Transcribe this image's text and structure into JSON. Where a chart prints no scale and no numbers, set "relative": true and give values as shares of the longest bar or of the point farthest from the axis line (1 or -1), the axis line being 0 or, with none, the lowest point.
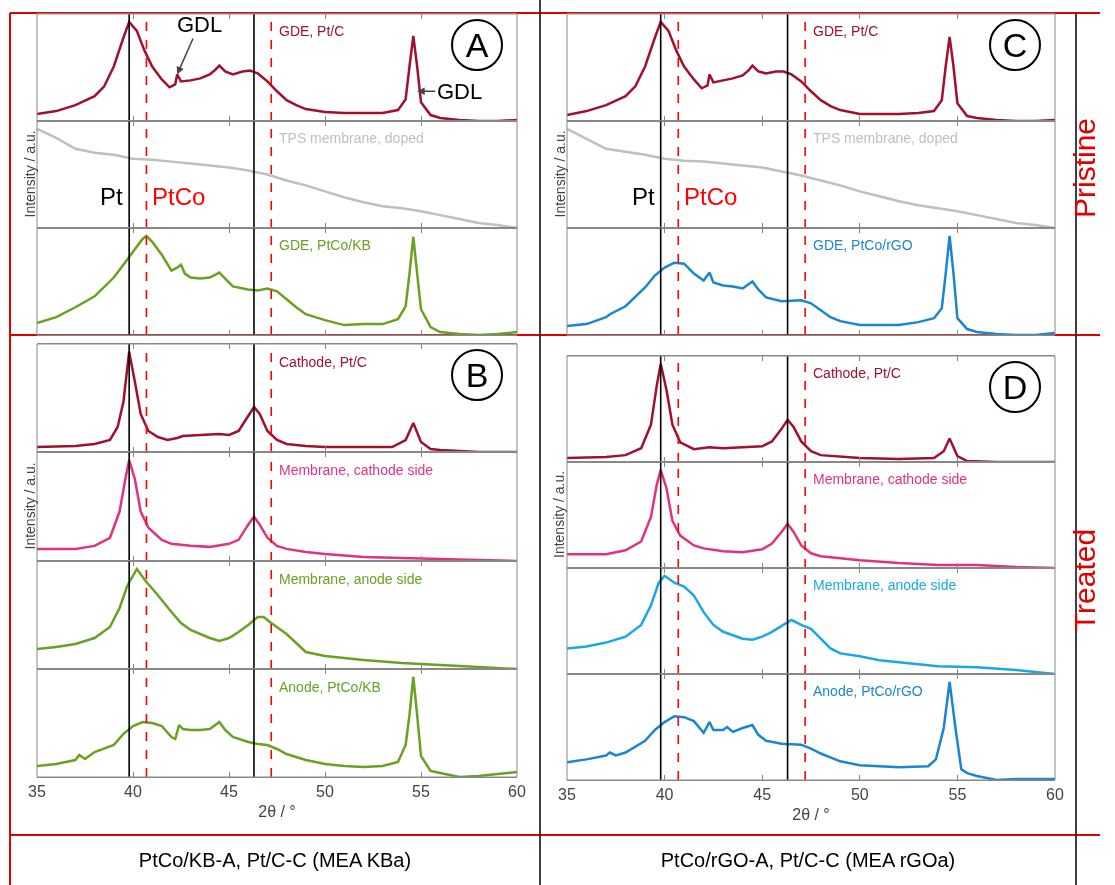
{
  "chart_data": [
    {
      "type": "line",
      "relative": true,
      "xlim": [
        35,
        60
      ],
      "xticks": [
        35,
        40,
        45,
        50,
        55,
        60
      ],
      "tick_labels": false,
      "annotations": [
        "A",
        {
          "text": "GDL",
          "x": 42.3,
          "y": 0.47
        },
        {
          "text": "GDL",
          "x": 54.8,
          "y": 0.3
        }
      ],
      "ref_lines": [
        {
          "axis": "x",
          "value": 39.8,
          "color": "#000000",
          "line_style": "solid"
        },
        {
          "axis": "x",
          "value": 40.7,
          "color": "#ff0000",
          "line_style": "dashed"
        },
        {
          "axis": "x",
          "value": 46.3,
          "color": "#000000",
          "line_style": "solid"
        },
        {
          "axis": "x",
          "value": 47.2,
          "color": "#ff0000",
          "line_style": "dashed"
        }
      ],
      "series": [
        {
          "name": "GDE, Pt/C",
          "color": "#a0112e",
          "x": [
            35,
            36,
            37,
            38,
            38.5,
            39,
            39.5,
            39.8,
            40.2,
            40.6,
            41,
            41.5,
            41.9,
            42.2,
            42.3,
            42.5,
            43,
            43.5,
            44,
            44.3,
            44.5,
            44.8,
            45.2,
            45.7,
            46.1,
            46.5,
            47,
            47.5,
            48,
            48.5,
            49,
            50,
            51,
            52,
            53,
            53.8,
            54.2,
            54.4,
            54.6,
            54.8,
            55,
            55.5,
            56,
            57,
            58,
            59,
            60
          ],
          "values": [
            0.07,
            0.1,
            0.16,
            0.25,
            0.35,
            0.55,
            0.84,
            1.0,
            0.91,
            0.71,
            0.55,
            0.42,
            0.34,
            0.37,
            0.47,
            0.4,
            0.41,
            0.43,
            0.47,
            0.52,
            0.56,
            0.5,
            0.47,
            0.5,
            0.51,
            0.48,
            0.4,
            0.3,
            0.21,
            0.16,
            0.12,
            0.09,
            0.08,
            0.08,
            0.08,
            0.11,
            0.22,
            0.55,
            0.86,
            0.55,
            0.19,
            0.06,
            0.03,
            0.01,
            0,
            0,
            0.01
          ]
        }
      ]
    },
    {
      "type": "line",
      "relative": true,
      "xlim": [
        35,
        60
      ],
      "xticks": [
        35,
        40,
        45,
        50,
        55,
        60
      ],
      "tick_labels": false,
      "ylabel": "Intensity / a.u.",
      "ref_lines": [
        {
          "axis": "x",
          "value": 39.8,
          "label": "Pt",
          "color": "#000000",
          "line_style": "solid"
        },
        {
          "axis": "x",
          "value": 40.7,
          "label": "PtCo",
          "color": "#ff0000",
          "line_style": "dashed"
        },
        {
          "axis": "x",
          "value": 46.3,
          "color": "#000000",
          "line_style": "solid"
        },
        {
          "axis": "x",
          "value": 47.2,
          "color": "#ff0000",
          "line_style": "dashed"
        }
      ],
      "series": [
        {
          "name": "TPS membrane, doped",
          "color": "#bfbfbf",
          "x": [
            35,
            36,
            37,
            38,
            39,
            40,
            41,
            42,
            43,
            44,
            45,
            46,
            47,
            48,
            49,
            50,
            51,
            52,
            53,
            54,
            55,
            56,
            57,
            58,
            59,
            60
          ],
          "values": [
            1.0,
            0.91,
            0.8,
            0.76,
            0.74,
            0.7,
            0.69,
            0.67,
            0.65,
            0.63,
            0.61,
            0.58,
            0.54,
            0.48,
            0.43,
            0.37,
            0.31,
            0.26,
            0.22,
            0.2,
            0.17,
            0.13,
            0.09,
            0.05,
            0.03,
            0.0
          ]
        }
      ]
    },
    {
      "type": "line",
      "relative": true,
      "xlim": [
        35,
        60
      ],
      "xticks": [
        35,
        40,
        45,
        50,
        55,
        60
      ],
      "tick_labels": false,
      "ref_lines": [
        {
          "axis": "x",
          "value": 39.8,
          "color": "#000000",
          "line_style": "solid"
        },
        {
          "axis": "x",
          "value": 40.7,
          "color": "#ff0000",
          "line_style": "dashed"
        },
        {
          "axis": "x",
          "value": 46.3,
          "color": "#000000",
          "line_style": "solid"
        },
        {
          "axis": "x",
          "value": 47.2,
          "color": "#ff0000",
          "line_style": "dashed"
        }
      ],
      "series": [
        {
          "name": "GDE, PtCo/KB",
          "color": "#6aa121",
          "x": [
            35,
            36,
            37,
            38,
            39,
            39.5,
            40,
            40.5,
            40.7,
            41,
            41.5,
            42,
            42.3,
            42.5,
            42.7,
            43,
            43.5,
            44,
            44.5,
            44.8,
            45.2,
            46,
            46.5,
            47,
            47.5,
            48,
            48.5,
            49,
            50,
            51,
            52,
            53,
            53.8,
            54.2,
            54.4,
            54.6,
            54.8,
            55,
            55.5,
            56,
            57,
            58,
            59,
            60
          ],
          "values": [
            0.12,
            0.18,
            0.28,
            0.39,
            0.58,
            0.71,
            0.84,
            0.97,
            1.0,
            0.94,
            0.81,
            0.65,
            0.68,
            0.71,
            0.62,
            0.58,
            0.57,
            0.58,
            0.63,
            0.57,
            0.49,
            0.46,
            0.45,
            0.47,
            0.44,
            0.36,
            0.28,
            0.21,
            0.15,
            0.1,
            0.11,
            0.11,
            0.16,
            0.29,
            0.62,
            0.99,
            0.62,
            0.26,
            0.08,
            0.03,
            0.01,
            0,
            0.01,
            0.03
          ]
        }
      ]
    },
    {
      "type": "line",
      "relative": true,
      "xlim": [
        35,
        60
      ],
      "xticks": [
        35,
        40,
        45,
        50,
        55,
        60
      ],
      "tick_labels": false,
      "annotations": [
        "C"
      ],
      "ref_lines": [
        {
          "axis": "x",
          "value": 39.8,
          "color": "#000000",
          "line_style": "solid"
        },
        {
          "axis": "x",
          "value": 40.7,
          "color": "#ff0000",
          "line_style": "dashed"
        },
        {
          "axis": "x",
          "value": 46.3,
          "color": "#000000",
          "line_style": "solid"
        },
        {
          "axis": "x",
          "value": 47.2,
          "color": "#ff0000",
          "line_style": "dashed"
        }
      ],
      "series": [
        {
          "name": "GDE, Pt/C",
          "color": "#a0112e",
          "x": [
            35,
            36,
            37,
            38,
            38.5,
            39,
            39.5,
            39.8,
            40.2,
            40.6,
            41,
            41.5,
            41.9,
            42.2,
            42.3,
            42.5,
            43,
            43.5,
            44,
            44.3,
            44.5,
            44.8,
            45.2,
            45.7,
            46.1,
            46.5,
            47,
            47.5,
            48,
            48.5,
            49,
            50,
            51,
            52,
            53,
            53.8,
            54.2,
            54.4,
            54.6,
            54.8,
            55,
            55.5,
            56,
            57,
            58,
            59,
            60
          ],
          "values": [
            0.06,
            0.1,
            0.16,
            0.25,
            0.35,
            0.55,
            0.84,
            1.0,
            0.91,
            0.71,
            0.55,
            0.42,
            0.33,
            0.36,
            0.47,
            0.39,
            0.41,
            0.43,
            0.46,
            0.51,
            0.56,
            0.5,
            0.48,
            0.5,
            0.5,
            0.47,
            0.4,
            0.3,
            0.21,
            0.15,
            0.11,
            0.07,
            0.07,
            0.07,
            0.08,
            0.1,
            0.21,
            0.55,
            0.85,
            0.55,
            0.18,
            0.05,
            0.03,
            0.01,
            0,
            0,
            0.01
          ]
        }
      ]
    },
    {
      "type": "line",
      "relative": true,
      "xlim": [
        35,
        60
      ],
      "xticks": [
        35,
        40,
        45,
        50,
        55,
        60
      ],
      "tick_labels": false,
      "ylabel": "Intensity / a.u.",
      "ref_lines": [
        {
          "axis": "x",
          "value": 39.8,
          "label": "Pt",
          "color": "#000000",
          "line_style": "solid"
        },
        {
          "axis": "x",
          "value": 40.7,
          "label": "PtCo",
          "color": "#ff0000",
          "line_style": "dashed"
        },
        {
          "axis": "x",
          "value": 46.3,
          "color": "#000000",
          "line_style": "solid"
        },
        {
          "axis": "x",
          "value": 47.2,
          "color": "#ff0000",
          "line_style": "dashed"
        }
      ],
      "series": [
        {
          "name": "TPS membrane, doped",
          "color": "#bfbfbf",
          "x": [
            35,
            36,
            37,
            38,
            39,
            40,
            41,
            42,
            43,
            44,
            45,
            46,
            47,
            48,
            49,
            50,
            51,
            52,
            53,
            54,
            55,
            56,
            57,
            58,
            59,
            60
          ],
          "values": [
            1.0,
            0.9,
            0.8,
            0.77,
            0.74,
            0.7,
            0.68,
            0.67,
            0.65,
            0.63,
            0.61,
            0.57,
            0.53,
            0.48,
            0.43,
            0.37,
            0.32,
            0.27,
            0.23,
            0.2,
            0.17,
            0.13,
            0.09,
            0.05,
            0.03,
            0.0
          ]
        }
      ]
    },
    {
      "type": "line",
      "relative": true,
      "xlim": [
        35,
        60
      ],
      "xticks": [
        35,
        40,
        45,
        50,
        55,
        60
      ],
      "tick_labels": false,
      "ref_lines": [
        {
          "axis": "x",
          "value": 39.8,
          "color": "#000000",
          "line_style": "solid"
        },
        {
          "axis": "x",
          "value": 40.7,
          "color": "#ff0000",
          "line_style": "dashed"
        },
        {
          "axis": "x",
          "value": 46.3,
          "color": "#000000",
          "line_style": "solid"
        },
        {
          "axis": "x",
          "value": 47.2,
          "color": "#ff0000",
          "line_style": "dashed"
        }
      ],
      "series": [
        {
          "name": "GDE, PtCo/rGO",
          "color": "#1a86cf",
          "x": [
            35,
            36,
            37,
            37.2,
            38,
            39,
            39.5,
            40,
            40.5,
            41,
            41.5,
            42,
            42.3,
            42.5,
            43,
            43.5,
            44,
            44.5,
            44.8,
            45.2,
            46,
            47,
            47.5,
            48,
            48.5,
            49,
            50,
            51,
            52,
            53,
            53.8,
            54.2,
            54.4,
            54.6,
            54.8,
            55,
            55.5,
            56,
            57,
            58,
            59,
            60
          ],
          "values": [
            0.09,
            0.11,
            0.18,
            0.21,
            0.29,
            0.48,
            0.6,
            0.68,
            0.73,
            0.72,
            0.62,
            0.55,
            0.63,
            0.53,
            0.5,
            0.49,
            0.47,
            0.54,
            0.46,
            0.38,
            0.34,
            0.35,
            0.32,
            0.25,
            0.18,
            0.14,
            0.1,
            0.1,
            0.1,
            0.13,
            0.17,
            0.27,
            0.62,
            1.0,
            0.62,
            0.17,
            0.06,
            0.03,
            0.01,
            0,
            0,
            0.02
          ]
        }
      ]
    },
    {
      "type": "line",
      "relative": true,
      "xlim": [
        35,
        60
      ],
      "xticks": [
        35,
        40,
        45,
        50,
        55,
        60
      ],
      "tick_labels": false,
      "annotations": [
        "B"
      ],
      "ref_lines": [
        {
          "axis": "x",
          "value": 39.8,
          "color": "#000000",
          "line_style": "solid"
        },
        {
          "axis": "x",
          "value": 40.7,
          "color": "#ff0000",
          "line_style": "dashed"
        },
        {
          "axis": "x",
          "value": 46.3,
          "color": "#000000",
          "line_style": "solid"
        },
        {
          "axis": "x",
          "value": 47.2,
          "color": "#ff0000",
          "line_style": "dashed"
        }
      ],
      "series": [
        {
          "name": "Cathode, Pt/C",
          "color": "#a0112e",
          "x": [
            35,
            37,
            38,
            38.8,
            39.2,
            39.5,
            39.8,
            40.1,
            40.4,
            40.8,
            41.3,
            41.8,
            42.3,
            42.6,
            43.5,
            44.5,
            45,
            45.5,
            46,
            46.3,
            46.6,
            47,
            47.5,
            48,
            49,
            50,
            52,
            53.5,
            54.2,
            54.6,
            55,
            55.5,
            56,
            58,
            60
          ],
          "values": [
            0.05,
            0.06,
            0.08,
            0.12,
            0.25,
            0.5,
            1.0,
            0.7,
            0.38,
            0.21,
            0.15,
            0.12,
            0.14,
            0.16,
            0.17,
            0.18,
            0.17,
            0.21,
            0.36,
            0.45,
            0.38,
            0.21,
            0.12,
            0.08,
            0.06,
            0.05,
            0.05,
            0.05,
            0.12,
            0.29,
            0.1,
            0.03,
            0.02,
            0,
            0
          ]
        }
      ]
    },
    {
      "type": "line",
      "relative": true,
      "xlim": [
        35,
        60
      ],
      "xticks": [
        35,
        40,
        45,
        50,
        55,
        60
      ],
      "tick_labels": false,
      "ylabel": "Intensity / a.u.",
      "ref_lines": [
        {
          "axis": "x",
          "value": 39.8,
          "color": "#000000",
          "line_style": "solid"
        },
        {
          "axis": "x",
          "value": 40.7,
          "color": "#ff0000",
          "line_style": "dashed"
        },
        {
          "axis": "x",
          "value": 46.3,
          "color": "#000000",
          "line_style": "solid"
        },
        {
          "axis": "x",
          "value": 47.2,
          "color": "#ff0000",
          "line_style": "dashed"
        }
      ],
      "series": [
        {
          "name": "Membrane, cathode side",
          "color": "#e0337f",
          "x": [
            35,
            37,
            38,
            38.8,
            39.3,
            39.6,
            39.8,
            40.1,
            40.4,
            40.8,
            41.5,
            42,
            43,
            44,
            45,
            45.5,
            46,
            46.3,
            46.6,
            47,
            47.5,
            48,
            49,
            50,
            52,
            54,
            56,
            58,
            60
          ],
          "values": [
            0.12,
            0.12,
            0.15,
            0.23,
            0.49,
            0.81,
            1.0,
            0.81,
            0.49,
            0.33,
            0.21,
            0.17,
            0.15,
            0.14,
            0.17,
            0.21,
            0.36,
            0.44,
            0.36,
            0.23,
            0.15,
            0.12,
            0.09,
            0.07,
            0.04,
            0.03,
            0.02,
            0.01,
            0
          ]
        }
      ]
    },
    {
      "type": "line",
      "relative": true,
      "xlim": [
        35,
        60
      ],
      "xticks": [
        35,
        40,
        45,
        50,
        55,
        60
      ],
      "tick_labels": false,
      "ref_lines": [
        {
          "axis": "x",
          "value": 39.8,
          "color": "#000000",
          "line_style": "solid"
        },
        {
          "axis": "x",
          "value": 40.7,
          "color": "#ff0000",
          "line_style": "dashed"
        },
        {
          "axis": "x",
          "value": 46.3,
          "color": "#000000",
          "line_style": "solid"
        },
        {
          "axis": "x",
          "value": 47.2,
          "color": "#ff0000",
          "line_style": "dashed"
        }
      ],
      "series": [
        {
          "name": "Membrane, anode side",
          "color": "#6aa121",
          "x": [
            35,
            36,
            37,
            38,
            38.8,
            39.3,
            39.7,
            40.2,
            40.7,
            41.2,
            42,
            42.5,
            43,
            44,
            44.5,
            45,
            45.5,
            46,
            46.5,
            46.8,
            47.2,
            48,
            48.5,
            49,
            50,
            51,
            52,
            54,
            56,
            58,
            60
          ],
          "values": [
            0.2,
            0.22,
            0.25,
            0.31,
            0.42,
            0.61,
            0.83,
            1.0,
            0.87,
            0.76,
            0.57,
            0.46,
            0.39,
            0.31,
            0.28,
            0.31,
            0.37,
            0.44,
            0.52,
            0.52,
            0.46,
            0.35,
            0.26,
            0.17,
            0.13,
            0.11,
            0.09,
            0.06,
            0.04,
            0.02,
            0
          ]
        }
      ]
    },
    {
      "type": "line",
      "relative": true,
      "xlim": [
        35,
        60
      ],
      "xticks": [
        35,
        40,
        45,
        50,
        55,
        60
      ],
      "tick_labels": "x",
      "xlabel": "2θ / °",
      "ref_lines": [
        {
          "axis": "x",
          "value": 39.8,
          "color": "#000000",
          "line_style": "solid"
        },
        {
          "axis": "x",
          "value": 40.7,
          "color": "#ff0000",
          "line_style": "dashed"
        },
        {
          "axis": "x",
          "value": 46.3,
          "color": "#000000",
          "line_style": "solid"
        },
        {
          "axis": "x",
          "value": 47.2,
          "color": "#ff0000",
          "line_style": "dashed"
        }
      ],
      "series": [
        {
          "name": "Anode, PtCo/KB",
          "color": "#6aa121",
          "x": [
            35,
            36,
            37,
            37.2,
            37.5,
            38,
            39,
            39.5,
            40,
            40.5,
            41,
            41.5,
            42,
            42.2,
            42.4,
            42.6,
            43,
            43.5,
            44,
            44.5,
            44.8,
            45.2,
            46,
            46.5,
            47,
            47.5,
            48,
            49,
            50,
            51,
            52,
            53,
            53.8,
            54.2,
            54.4,
            54.6,
            54.8,
            55,
            55.5,
            56,
            57,
            58,
            59,
            60
          ],
          "values": [
            0.11,
            0.13,
            0.17,
            0.22,
            0.18,
            0.25,
            0.32,
            0.43,
            0.51,
            0.55,
            0.54,
            0.51,
            0.4,
            0.38,
            0.52,
            0.48,
            0.47,
            0.47,
            0.48,
            0.55,
            0.47,
            0.4,
            0.35,
            0.33,
            0.32,
            0.28,
            0.23,
            0.17,
            0.13,
            0.11,
            0.1,
            0.11,
            0.15,
            0.32,
            0.62,
            1.0,
            0.62,
            0.21,
            0.06,
            0.04,
            0,
            0.01,
            0.03,
            0.05
          ]
        }
      ]
    },
    {
      "type": "line",
      "relative": true,
      "xlim": [
        35,
        60
      ],
      "xticks": [
        35,
        40,
        45,
        50,
        55,
        60
      ],
      "tick_labels": false,
      "annotations": [
        "D"
      ],
      "ref_lines": [
        {
          "axis": "x",
          "value": 39.8,
          "color": "#000000",
          "line_style": "solid"
        },
        {
          "axis": "x",
          "value": 40.7,
          "color": "#ff0000",
          "line_style": "dashed"
        },
        {
          "axis": "x",
          "value": 46.3,
          "color": "#000000",
          "line_style": "solid"
        },
        {
          "axis": "x",
          "value": 47.2,
          "color": "#ff0000",
          "line_style": "dashed"
        }
      ],
      "series": [
        {
          "name": "Cathode, Pt/C",
          "color": "#a0112e",
          "x": [
            35,
            37,
            38,
            38.8,
            39.3,
            39.6,
            39.8,
            40.1,
            40.4,
            40.8,
            41.5,
            42.3,
            43,
            44,
            45,
            45.5,
            46,
            46.3,
            46.6,
            47,
            47.5,
            48,
            50,
            52,
            53.8,
            54.3,
            54.6,
            55,
            55.5,
            57,
            60
          ],
          "values": [
            0.04,
            0.05,
            0.07,
            0.14,
            0.38,
            0.78,
            1.0,
            0.73,
            0.38,
            0.2,
            0.13,
            0.15,
            0.14,
            0.15,
            0.16,
            0.21,
            0.34,
            0.43,
            0.36,
            0.21,
            0.11,
            0.07,
            0.04,
            0.03,
            0.04,
            0.11,
            0.24,
            0.06,
            0.01,
            0,
            0
          ]
        }
      ]
    },
    {
      "type": "line",
      "relative": true,
      "xlim": [
        35,
        60
      ],
      "xticks": [
        35,
        40,
        45,
        50,
        55,
        60
      ],
      "tick_labels": false,
      "ylabel": "Intensity / a.u.",
      "ref_lines": [
        {
          "axis": "x",
          "value": 39.8,
          "color": "#000000",
          "line_style": "solid"
        },
        {
          "axis": "x",
          "value": 40.7,
          "color": "#ff0000",
          "line_style": "dashed"
        },
        {
          "axis": "x",
          "value": 46.3,
          "color": "#000000",
          "line_style": "solid"
        },
        {
          "axis": "x",
          "value": 47.2,
          "color": "#ff0000",
          "line_style": "dashed"
        }
      ],
      "series": [
        {
          "name": "Membrane, cathode side",
          "color": "#e0337f",
          "x": [
            35,
            37,
            38,
            38.8,
            39.3,
            39.6,
            39.8,
            40.1,
            40.4,
            40.8,
            41.5,
            42,
            43,
            44,
            45,
            45.5,
            46,
            46.3,
            46.6,
            47,
            47.5,
            48,
            50,
            52,
            54,
            56,
            58,
            60
          ],
          "values": [
            0.14,
            0.14,
            0.18,
            0.27,
            0.52,
            0.85,
            1.0,
            0.81,
            0.48,
            0.33,
            0.23,
            0.2,
            0.17,
            0.16,
            0.19,
            0.25,
            0.37,
            0.45,
            0.37,
            0.23,
            0.15,
            0.12,
            0.08,
            0.05,
            0.03,
            0.03,
            0.01,
            0
          ]
        }
      ]
    },
    {
      "type": "line",
      "relative": true,
      "xlim": [
        35,
        60
      ],
      "xticks": [
        35,
        40,
        45,
        50,
        55,
        60
      ],
      "tick_labels": false,
      "ref_lines": [
        {
          "axis": "x",
          "value": 39.8,
          "color": "#000000",
          "line_style": "solid"
        },
        {
          "axis": "x",
          "value": 40.7,
          "color": "#ff0000",
          "line_style": "dashed"
        },
        {
          "axis": "x",
          "value": 46.3,
          "color": "#000000",
          "line_style": "solid"
        },
        {
          "axis": "x",
          "value": 47.2,
          "color": "#ff0000",
          "line_style": "dashed"
        }
      ],
      "series": [
        {
          "name": "Membrane, anode side",
          "color": "#1aa7e8",
          "x": [
            35,
            36,
            37,
            38,
            38.8,
            39.3,
            39.7,
            40,
            40.5,
            41,
            41.5,
            42,
            42.5,
            43,
            44,
            44.5,
            45,
            45.5,
            46,
            46.5,
            47,
            47.5,
            48,
            48.5,
            49,
            50,
            51,
            52,
            54,
            56,
            58,
            60
          ],
          "values": [
            0.26,
            0.28,
            0.32,
            0.38,
            0.5,
            0.7,
            0.93,
            1.0,
            0.93,
            0.89,
            0.8,
            0.63,
            0.5,
            0.43,
            0.36,
            0.35,
            0.38,
            0.43,
            0.49,
            0.55,
            0.5,
            0.46,
            0.36,
            0.26,
            0.21,
            0.18,
            0.14,
            0.12,
            0.08,
            0.07,
            0.04,
            0
          ]
        }
      ]
    },
    {
      "type": "line",
      "relative": true,
      "xlim": [
        35,
        60
      ],
      "xticks": [
        35,
        40,
        45,
        50,
        55,
        60
      ],
      "tick_labels": "x",
      "xlabel": "2θ / °",
      "ref_lines": [
        {
          "axis": "x",
          "value": 39.8,
          "color": "#000000",
          "line_style": "solid"
        },
        {
          "axis": "x",
          "value": 40.7,
          "color": "#ff0000",
          "line_style": "dashed"
        },
        {
          "axis": "x",
          "value": 46.3,
          "color": "#000000",
          "line_style": "solid"
        },
        {
          "axis": "x",
          "value": 47.2,
          "color": "#ff0000",
          "line_style": "dashed"
        }
      ],
      "series": [
        {
          "name": "Anode, PtCo/rGO",
          "color": "#1a86cf",
          "x": [
            35,
            36,
            37,
            37.2,
            37.5,
            38,
            39,
            39.5,
            40,
            40.5,
            41,
            41.5,
            42,
            42.3,
            42.5,
            43,
            43.2,
            43.5,
            44,
            44.5,
            44.8,
            45.2,
            46,
            47,
            47.5,
            48,
            49,
            50,
            51,
            52,
            53.5,
            53.9,
            54.3,
            54.6,
            54.9,
            55.2,
            55.5,
            56,
            57,
            58,
            59,
            60
          ],
          "values": [
            0.18,
            0.21,
            0.25,
            0.28,
            0.25,
            0.28,
            0.4,
            0.51,
            0.59,
            0.65,
            0.64,
            0.6,
            0.48,
            0.59,
            0.51,
            0.51,
            0.54,
            0.49,
            0.53,
            0.56,
            0.46,
            0.4,
            0.37,
            0.36,
            0.32,
            0.27,
            0.19,
            0.15,
            0.14,
            0.13,
            0.14,
            0.21,
            0.53,
            1.0,
            0.53,
            0.11,
            0.07,
            0.04,
            0,
            0.01,
            0.01,
            0.01
          ]
        }
      ]
    },
    {
      "type": "other",
      "annotations": [
        "Pristine",
        "Treated",
        "PtCo/KB-A, Pt/C-C (MEA KBa)",
        "PtCo/rGO-A, Pt/C-C (MEA rGOa)"
      ]
    }
  ]
}
